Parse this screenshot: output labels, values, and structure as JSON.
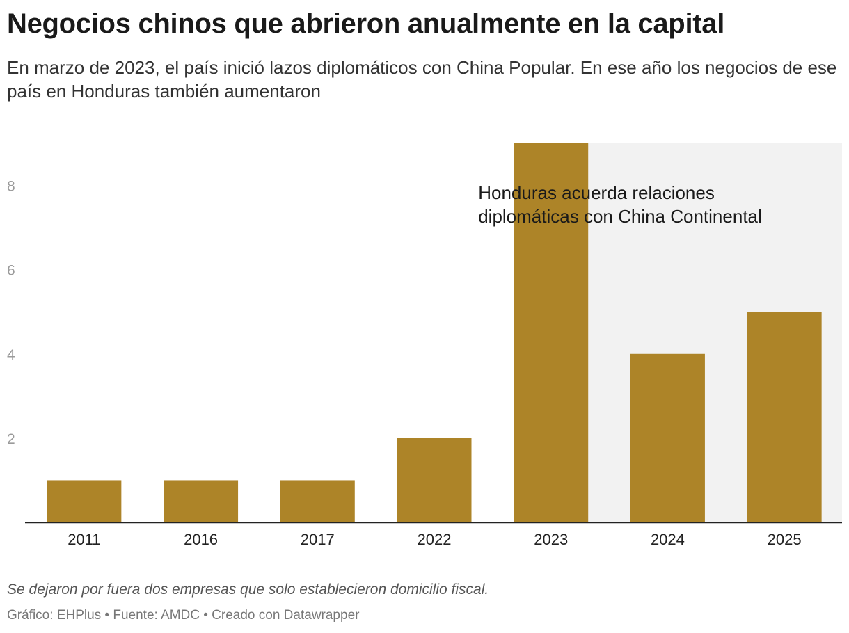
{
  "header": {
    "title": "Negocios chinos que abrieron anualmente en la capital",
    "subtitle": "En marzo de 2023, el país inició lazos diplomáticos con China Popular. En ese año los negocios de ese país en Honduras también aumentaron"
  },
  "chart_data": {
    "type": "bar",
    "categories": [
      "2011",
      "2016",
      "2017",
      "2022",
      "2023",
      "2024",
      "2025"
    ],
    "values": [
      1,
      1,
      1,
      2,
      9,
      4,
      5
    ],
    "ylim": [
      0,
      9
    ],
    "yticks": [
      2,
      4,
      6,
      8
    ],
    "grid": false,
    "bar_color": "#ad8428",
    "highlight": {
      "from_category": "2023",
      "to_category": "2025",
      "color": "#f2f2f2"
    },
    "annotation": {
      "lines": [
        "Honduras acuerda relaciones",
        "diplomáticas con China Continental"
      ],
      "category": "2023"
    }
  },
  "footer": {
    "note": "Se dejaron por fuera dos empresas que solo establecieron domicilio fiscal.",
    "credits": "Gráfico: EHPlus • Fuente: AMDC • Creado con Datawrapper"
  }
}
